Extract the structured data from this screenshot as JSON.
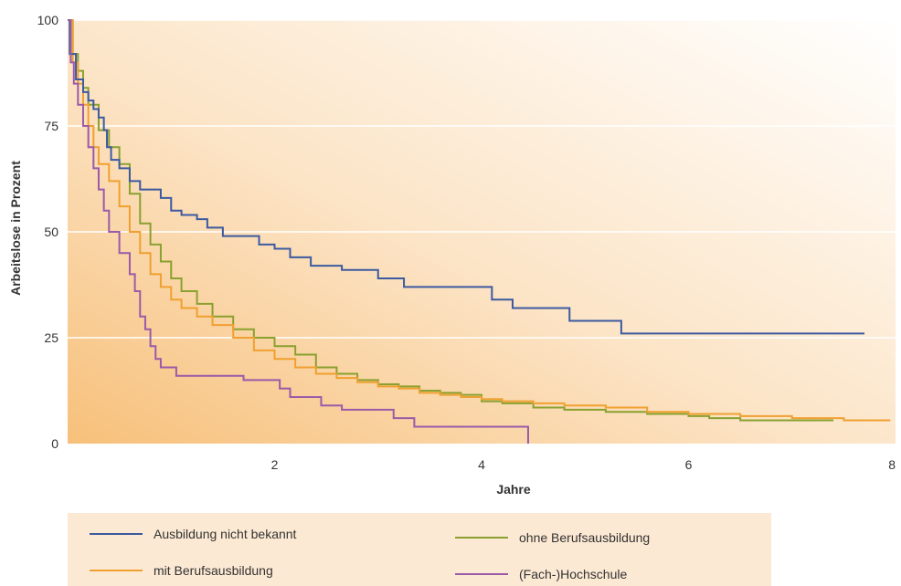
{
  "chart_data": {
    "type": "line",
    "title": "",
    "xlabel": "Jahre",
    "ylabel": "Arbeitslose in Prozent",
    "xlim": [
      0,
      8
    ],
    "ylim": [
      0,
      100
    ],
    "x_ticks": [
      2,
      4,
      6,
      8
    ],
    "y_ticks": [
      0,
      25,
      50,
      75,
      100
    ],
    "grid": "horizontal",
    "legend_position": "bottom",
    "series": [
      {
        "name": "Ausbildung nicht bekannt",
        "color": "#3c5aa0",
        "step": true,
        "points": [
          [
            0,
            100
          ],
          [
            0.02,
            92
          ],
          [
            0.08,
            86
          ],
          [
            0.15,
            83
          ],
          [
            0.2,
            81
          ],
          [
            0.25,
            79
          ],
          [
            0.3,
            77
          ],
          [
            0.35,
            74
          ],
          [
            0.38,
            70
          ],
          [
            0.42,
            67
          ],
          [
            0.5,
            65
          ],
          [
            0.6,
            62
          ],
          [
            0.7,
            60
          ],
          [
            0.85,
            60
          ],
          [
            0.9,
            58
          ],
          [
            1.0,
            55
          ],
          [
            1.1,
            54
          ],
          [
            1.25,
            53
          ],
          [
            1.35,
            51
          ],
          [
            1.5,
            49
          ],
          [
            1.75,
            49
          ],
          [
            1.85,
            47
          ],
          [
            2.0,
            46
          ],
          [
            2.15,
            44
          ],
          [
            2.35,
            42
          ],
          [
            2.6,
            42
          ],
          [
            2.65,
            41
          ],
          [
            2.95,
            41
          ],
          [
            3.0,
            39
          ],
          [
            3.2,
            39
          ],
          [
            3.25,
            37
          ],
          [
            4.0,
            37
          ],
          [
            4.1,
            34
          ],
          [
            4.3,
            32
          ],
          [
            4.8,
            32
          ],
          [
            4.85,
            29
          ],
          [
            5.3,
            29
          ],
          [
            5.35,
            26
          ],
          [
            7.7,
            26
          ]
        ]
      },
      {
        "name": "mit Berufsausbildung",
        "color": "#f0a030",
        "step": true,
        "points": [
          [
            0,
            100
          ],
          [
            0.05,
            90
          ],
          [
            0.1,
            85
          ],
          [
            0.15,
            80
          ],
          [
            0.2,
            75
          ],
          [
            0.25,
            70
          ],
          [
            0.3,
            66
          ],
          [
            0.4,
            62
          ],
          [
            0.5,
            56
          ],
          [
            0.6,
            50
          ],
          [
            0.7,
            45
          ],
          [
            0.8,
            40
          ],
          [
            0.9,
            37
          ],
          [
            1.0,
            34
          ],
          [
            1.1,
            32
          ],
          [
            1.25,
            30
          ],
          [
            1.4,
            28
          ],
          [
            1.6,
            25
          ],
          [
            1.8,
            22
          ],
          [
            2.0,
            20
          ],
          [
            2.2,
            18
          ],
          [
            2.4,
            16.5
          ],
          [
            2.6,
            15.5
          ],
          [
            2.8,
            14.5
          ],
          [
            3.0,
            13.5
          ],
          [
            3.2,
            13
          ],
          [
            3.4,
            12
          ],
          [
            3.6,
            11.5
          ],
          [
            3.8,
            11
          ],
          [
            4.0,
            10.5
          ],
          [
            4.2,
            10
          ],
          [
            4.5,
            9.5
          ],
          [
            4.8,
            9
          ],
          [
            5.2,
            8.5
          ],
          [
            5.6,
            7.5
          ],
          [
            6.0,
            7
          ],
          [
            6.5,
            6.5
          ],
          [
            7.0,
            6
          ],
          [
            7.5,
            5.5
          ],
          [
            7.95,
            5.5
          ]
        ]
      },
      {
        "name": "ohne Berufsausbildung",
        "color": "#8aa030",
        "step": true,
        "points": [
          [
            0,
            100
          ],
          [
            0.05,
            92
          ],
          [
            0.1,
            88
          ],
          [
            0.15,
            84
          ],
          [
            0.2,
            80
          ],
          [
            0.3,
            74
          ],
          [
            0.4,
            70
          ],
          [
            0.5,
            66
          ],
          [
            0.6,
            59
          ],
          [
            0.7,
            52
          ],
          [
            0.8,
            47
          ],
          [
            0.9,
            43
          ],
          [
            1.0,
            39
          ],
          [
            1.1,
            36
          ],
          [
            1.25,
            33
          ],
          [
            1.4,
            30
          ],
          [
            1.6,
            27
          ],
          [
            1.8,
            25
          ],
          [
            2.0,
            23
          ],
          [
            2.2,
            21
          ],
          [
            2.4,
            18
          ],
          [
            2.6,
            16.5
          ],
          [
            2.8,
            15
          ],
          [
            3.0,
            14
          ],
          [
            3.2,
            13.5
          ],
          [
            3.4,
            12.5
          ],
          [
            3.6,
            12
          ],
          [
            3.8,
            11.5
          ],
          [
            4.0,
            10
          ],
          [
            4.2,
            9.5
          ],
          [
            4.5,
            8.5
          ],
          [
            4.8,
            8
          ],
          [
            5.2,
            7.5
          ],
          [
            5.6,
            7
          ],
          [
            6.0,
            6.5
          ],
          [
            6.2,
            6
          ],
          [
            6.5,
            5.5
          ],
          [
            7.0,
            5.5
          ],
          [
            7.4,
            5.5
          ]
        ]
      },
      {
        "name": "(Fach-)Hochschule",
        "color": "#9a5aa8",
        "step": true,
        "points": [
          [
            0,
            100
          ],
          [
            0.03,
            90
          ],
          [
            0.06,
            85
          ],
          [
            0.1,
            80
          ],
          [
            0.15,
            75
          ],
          [
            0.2,
            70
          ],
          [
            0.25,
            65
          ],
          [
            0.3,
            60
          ],
          [
            0.35,
            55
          ],
          [
            0.4,
            50
          ],
          [
            0.5,
            45
          ],
          [
            0.6,
            40
          ],
          [
            0.65,
            36
          ],
          [
            0.7,
            30
          ],
          [
            0.75,
            27
          ],
          [
            0.8,
            23
          ],
          [
            0.85,
            20
          ],
          [
            0.9,
            18
          ],
          [
            1.0,
            18
          ],
          [
            1.05,
            16
          ],
          [
            1.65,
            16
          ],
          [
            1.7,
            15
          ],
          [
            2.0,
            15
          ],
          [
            2.05,
            13
          ],
          [
            2.15,
            11
          ],
          [
            2.4,
            11
          ],
          [
            2.45,
            9
          ],
          [
            2.6,
            9
          ],
          [
            2.65,
            8
          ],
          [
            3.1,
            8
          ],
          [
            3.15,
            6
          ],
          [
            3.3,
            6
          ],
          [
            3.35,
            4
          ],
          [
            4.45,
            4
          ],
          [
            4.45,
            0
          ]
        ]
      }
    ]
  }
}
